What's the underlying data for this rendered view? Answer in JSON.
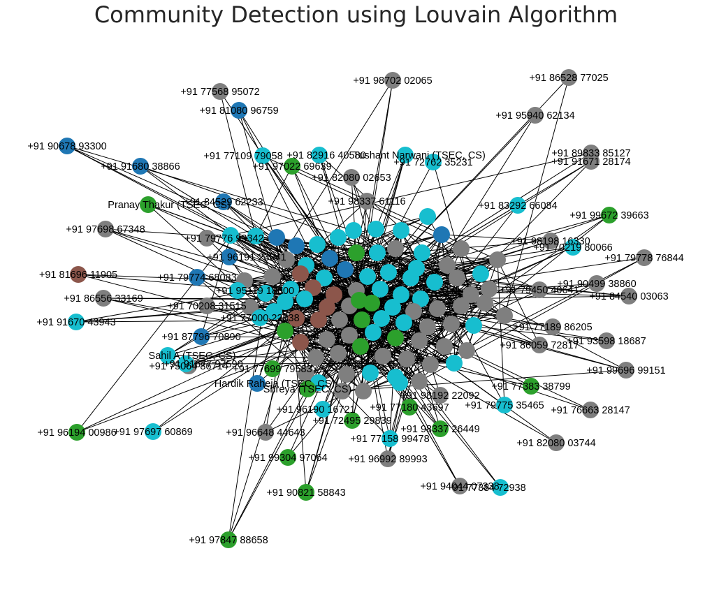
{
  "title": "Community Detection using Louvain Algorithm",
  "communities": [
    {
      "id": "blue",
      "color": "#1f77b4"
    },
    {
      "id": "brown",
      "color": "#8c564b"
    },
    {
      "id": "gray",
      "color": "#7f7f7f"
    },
    {
      "id": "green",
      "color": "#2ca02c"
    },
    {
      "id": "cyan",
      "color": "#17becf"
    }
  ],
  "hub": {
    "label": "",
    "community": "green"
  },
  "nodes": [
    {
      "label": "+91 77568 95072",
      "community": "gray"
    },
    {
      "label": "+91 98702 02065",
      "community": "gray"
    },
    {
      "label": "+91 86528 77025",
      "community": "gray"
    },
    {
      "label": "+91 81080 96759",
      "community": "blue"
    },
    {
      "label": "+91 95940 62134",
      "community": "gray"
    },
    {
      "label": "+91 90678 93300",
      "community": "blue"
    },
    {
      "label": "+91 91680 38866",
      "community": "blue"
    },
    {
      "label": "+91 77109 79058",
      "community": "cyan"
    },
    {
      "label": "+91 82916 40580",
      "community": "cyan"
    },
    {
      "label": "Tushant Narwani (TSEC, CS)",
      "community": "cyan"
    },
    {
      "label": "+91 89833 85127",
      "community": "gray"
    },
    {
      "label": "+91 91671 28174",
      "community": "gray"
    },
    {
      "label": "+91 97022 69639",
      "community": "green"
    },
    {
      "label": "+91 72762 35231",
      "community": "cyan"
    },
    {
      "label": "+91 82080 02653",
      "community": "gray"
    },
    {
      "label": "+91 98337 61116",
      "community": "gray"
    },
    {
      "label": "Pranay Thakur (TSEC, CS)",
      "community": "green"
    },
    {
      "label": "+91 84529 62233",
      "community": "blue"
    },
    {
      "label": "+91 83292 66084",
      "community": "cyan"
    },
    {
      "label": "+91 99672 39663",
      "community": "green"
    },
    {
      "label": "+91 97698 67348",
      "community": "gray"
    },
    {
      "label": "+91 79776 93342",
      "community": "gray"
    },
    {
      "label": "+91 98198 16330",
      "community": "gray"
    },
    {
      "label": "+91 70219 80066",
      "community": "cyan"
    },
    {
      "label": "+91 79778 76844",
      "community": "gray"
    },
    {
      "label": "+91 96191 23041",
      "community": "blue"
    },
    {
      "label": "+91 81696 11905",
      "community": "brown"
    },
    {
      "label": "+91 79774 68083",
      "community": "blue"
    },
    {
      "label": "+91 90499 38860",
      "community": "gray"
    },
    {
      "label": "+91 95119 18600",
      "community": "cyan"
    },
    {
      "label": "+91 79450 40641",
      "community": "gray"
    },
    {
      "label": "+91 84540 03063",
      "community": "gray"
    },
    {
      "label": "+91 86556 33169",
      "community": "gray"
    },
    {
      "label": "+91 70208 31515",
      "community": "gray"
    },
    {
      "label": "+91 91670 43943",
      "community": "cyan"
    },
    {
      "label": "+91 77000 22638",
      "community": "cyan"
    },
    {
      "label": "+91 87796 70890",
      "community": "blue"
    },
    {
      "label": "+91 77189 86205",
      "community": "gray"
    },
    {
      "label": "+91 93598 18687",
      "community": "gray"
    },
    {
      "label": "+91 86059 72817",
      "community": "gray"
    },
    {
      "label": "Sahil A (TSEC, CS)",
      "community": "cyan"
    },
    {
      "label": "+91 75064 86714",
      "community": "gray"
    },
    {
      "label": "+91 91677 97590",
      "community": "cyan"
    },
    {
      "label": "+91 77699 79583",
      "community": "green"
    },
    {
      "label": "Hardik Raheja (TSEC, CS)",
      "community": "blue"
    },
    {
      "label": "Shreya (TSEC, CS)",
      "community": "green"
    },
    {
      "label": "+91 99696 99151",
      "community": "gray"
    },
    {
      "label": "+91 77383 38799",
      "community": "green"
    },
    {
      "label": "+91 98192 22092",
      "community": "gray"
    },
    {
      "label": "+91 77180 43697",
      "community": "green"
    },
    {
      "label": "+91 79775 35465",
      "community": "cyan"
    },
    {
      "label": "+91 76663 28147",
      "community": "gray"
    },
    {
      "label": "+91 96190 16721",
      "community": "cyan"
    },
    {
      "label": "+91 72495 29839",
      "community": "green"
    },
    {
      "label": "+91 96194 00986",
      "community": "green"
    },
    {
      "label": "+91 97697 60869",
      "community": "cyan"
    },
    {
      "label": "+91 98337 26449",
      "community": "green"
    },
    {
      "label": "+91 96648 44643",
      "community": "gray"
    },
    {
      "label": "+91 77158 99478",
      "community": "cyan"
    },
    {
      "label": "+91 82080 03744",
      "community": "gray"
    },
    {
      "label": "+91 99304 97064",
      "community": "green"
    },
    {
      "label": "+91 96992 89993",
      "community": "gray"
    },
    {
      "label": "+91 94044 07338",
      "community": "gray"
    },
    {
      "label": "+91 77384 72938",
      "community": "cyan"
    },
    {
      "label": "+91 90821 58843",
      "community": "green"
    },
    {
      "label": "+91 97847 88658",
      "community": "green"
    }
  ]
}
